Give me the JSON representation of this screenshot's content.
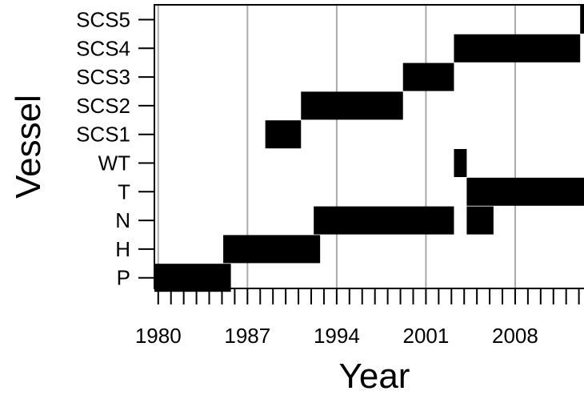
{
  "chart_data": {
    "type": "gantt",
    "title": "",
    "xlabel": "Year",
    "ylabel": "Vessel",
    "xlim": [
      1979.7,
      2013.4
    ],
    "x_ticks": [
      1980,
      1987,
      1994,
      2001,
      2008
    ],
    "grid": "vertical lines at 1980, 1987, 1994, 2001, 2008",
    "categories": [
      "P",
      "H",
      "N",
      "T",
      "WT",
      "SCS1",
      "SCS2",
      "SCS3",
      "SCS4",
      "SCS5"
    ],
    "series": [
      {
        "vessel": "P",
        "intervals": [
          [
            1979.7,
            1985.7
          ]
        ]
      },
      {
        "vessel": "H",
        "intervals": [
          [
            1985.1,
            1992.7
          ]
        ]
      },
      {
        "vessel": "N",
        "intervals": [
          [
            1992.2,
            2003.2
          ],
          [
            2004.2,
            2006.3
          ]
        ]
      },
      {
        "vessel": "T",
        "intervals": [
          [
            2004.2,
            2013.4
          ]
        ]
      },
      {
        "vessel": "WT",
        "intervals": [
          [
            2003.2,
            2004.2
          ]
        ]
      },
      {
        "vessel": "SCS1",
        "intervals": [
          [
            1988.4,
            1991.2
          ]
        ]
      },
      {
        "vessel": "SCS2",
        "intervals": [
          [
            1991.2,
            1999.2
          ]
        ]
      },
      {
        "vessel": "SCS3",
        "intervals": [
          [
            1999.2,
            2003.2
          ]
        ]
      },
      {
        "vessel": "SCS4",
        "intervals": [
          [
            2003.2,
            2013.1
          ]
        ]
      },
      {
        "vessel": "SCS5",
        "intervals": [
          [
            2013.1,
            2013.4
          ]
        ]
      }
    ],
    "bar_color": "#000000",
    "grid_color": "#aaaaaa"
  }
}
